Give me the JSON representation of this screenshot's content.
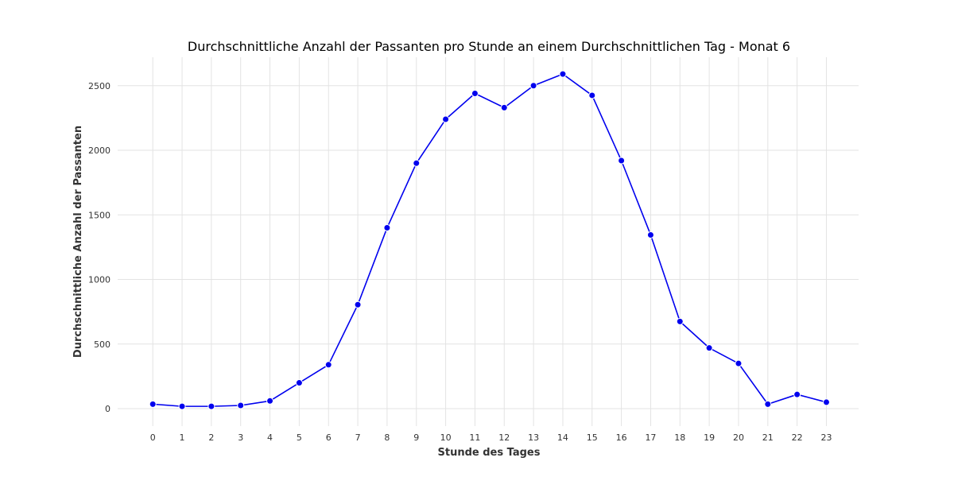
{
  "chart_data": {
    "type": "line",
    "title": "Durchschnittliche Anzahl der Passanten pro Stunde an einem Durchschnittlichen Tag - Monat 6",
    "xlabel": "Stunde des Tages",
    "ylabel": "Durchschnittliche Anzahl der Passanten",
    "x": [
      0,
      1,
      2,
      3,
      4,
      5,
      6,
      7,
      8,
      9,
      10,
      11,
      12,
      13,
      14,
      15,
      16,
      17,
      18,
      19,
      20,
      21,
      22,
      23
    ],
    "series": [
      {
        "values": [
          35,
          18,
          18,
          25,
          60,
          200,
          340,
          805,
          1400,
          1900,
          2240,
          2440,
          2330,
          2500,
          2590,
          2425,
          1920,
          1345,
          675,
          470,
          350,
          35,
          110,
          50
        ],
        "color": "#0000ee",
        "marker": "circle"
      }
    ],
    "xticks": [
      "0",
      "1",
      "2",
      "3",
      "4",
      "5",
      "6",
      "7",
      "8",
      "9",
      "10",
      "11",
      "12",
      "13",
      "14",
      "15",
      "16",
      "17",
      "18",
      "19",
      "20",
      "21",
      "22",
      "23"
    ],
    "yticks": [
      "0",
      "500",
      "1000",
      "1500",
      "2000",
      "2500"
    ],
    "ytick_values": [
      0,
      500,
      1000,
      1500,
      2000,
      2500
    ],
    "xlim": [
      -1.2,
      24.1
    ],
    "ylim": [
      -135,
      2720
    ],
    "grid": true,
    "gridColor": "#e3e3e3",
    "legend": "none"
  }
}
